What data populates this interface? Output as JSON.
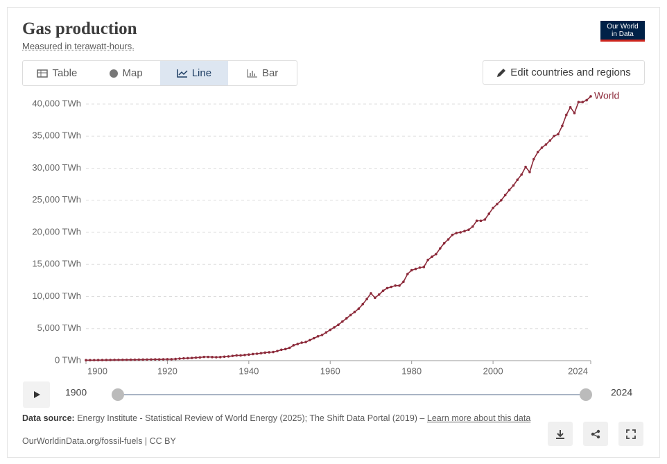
{
  "chart_data": {
    "type": "line",
    "title": "Gas production",
    "subtitle": "Measured in terawatt-hours.",
    "x": [
      1900,
      1901,
      1902,
      1903,
      1904,
      1905,
      1906,
      1907,
      1908,
      1909,
      1910,
      1911,
      1912,
      1913,
      1914,
      1915,
      1916,
      1917,
      1918,
      1919,
      1920,
      1921,
      1922,
      1923,
      1924,
      1925,
      1926,
      1927,
      1928,
      1929,
      1930,
      1931,
      1932,
      1933,
      1934,
      1935,
      1936,
      1937,
      1938,
      1939,
      1940,
      1941,
      1942,
      1943,
      1944,
      1945,
      1946,
      1947,
      1948,
      1949,
      1950,
      1951,
      1952,
      1953,
      1954,
      1955,
      1956,
      1957,
      1958,
      1959,
      1960,
      1961,
      1962,
      1963,
      1964,
      1965,
      1966,
      1967,
      1968,
      1969,
      1970,
      1971,
      1972,
      1973,
      1974,
      1975,
      1976,
      1977,
      1978,
      1979,
      1980,
      1981,
      1982,
      1983,
      1984,
      1985,
      1986,
      1987,
      1988,
      1989,
      1990,
      1991,
      1992,
      1993,
      1994,
      1995,
      1996,
      1997,
      1998,
      1999,
      2000,
      2001,
      2002,
      2003,
      2004,
      2005,
      2006,
      2007,
      2008,
      2009,
      2010,
      2011,
      2012,
      2013,
      2014,
      2015,
      2016,
      2017,
      2018,
      2019,
      2020,
      2021,
      2022,
      2023,
      2024
    ],
    "series": [
      {
        "name": "World",
        "color": "#8c2a3a",
        "values": [
          70,
          75,
          80,
          85,
          90,
          100,
          105,
          115,
          115,
          125,
          135,
          140,
          150,
          160,
          165,
          175,
          190,
          200,
          200,
          210,
          230,
          220,
          260,
          320,
          360,
          380,
          420,
          470,
          510,
          580,
          580,
          560,
          540,
          560,
          620,
          660,
          740,
          820,
          820,
          880,
          950,
          1030,
          1080,
          1160,
          1250,
          1300,
          1350,
          1500,
          1700,
          1800,
          2000,
          2400,
          2600,
          2800,
          2900,
          3200,
          3500,
          3800,
          4000,
          4400,
          4800,
          5200,
          5600,
          6100,
          6600,
          7100,
          7600,
          8100,
          8800,
          9600,
          10500,
          9800,
          10300,
          10900,
          11300,
          11500,
          11700,
          11700,
          12300,
          13500,
          14100,
          14300,
          14500,
          14600,
          15700,
          16200,
          16600,
          17500,
          18300,
          18900,
          19600,
          19900,
          20000,
          20200,
          20400,
          20900,
          21800,
          21800,
          22000,
          22900,
          23800,
          24400,
          25000,
          25800,
          26600,
          27300,
          28200,
          29000,
          30200,
          29400,
          31400,
          32500,
          33200,
          33700,
          34300,
          35000,
          35300,
          36600,
          38300,
          39500,
          38600,
          40300,
          40300,
          40600,
          41200
        ]
      }
    ],
    "xlim": [
      1900,
      2024
    ],
    "xticks": [
      1900,
      1920,
      1940,
      1960,
      1980,
      2000,
      2024
    ],
    "ylim": [
      0,
      40000
    ],
    "yticks": [
      {
        "value": 0,
        "label": "0 TWh"
      },
      {
        "value": 5000,
        "label": "5,000 TWh"
      },
      {
        "value": 10000,
        "label": "10,000 TWh"
      },
      {
        "value": 15000,
        "label": "15,000 TWh"
      },
      {
        "value": 20000,
        "label": "20,000 TWh"
      },
      {
        "value": 25000,
        "label": "25,000 TWh"
      },
      {
        "value": 30000,
        "label": "30,000 TWh"
      },
      {
        "value": 35000,
        "label": "35,000 TWh"
      },
      {
        "value": 40000,
        "label": "40,000 TWh"
      }
    ],
    "grid": true
  },
  "logo": {
    "line1": "Our World",
    "line2": "in Data"
  },
  "tabs": [
    "Table",
    "Map",
    "Line",
    "Bar"
  ],
  "edit_button": "Edit countries and regions",
  "footer": {
    "source_label": "Data source:",
    "source_text": "Energy Institute - Statistical Review of World Energy (2025); The Shift Data Portal (2019) –",
    "learn_more": "Learn more about this data",
    "license": "OurWorldinData.org/fossil-fuels | CC BY"
  }
}
